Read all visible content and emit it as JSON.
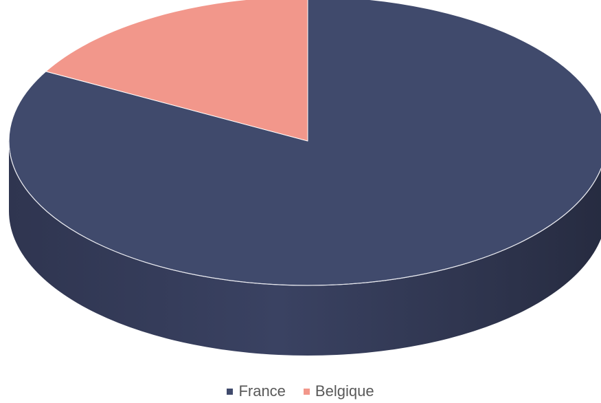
{
  "chart_data": {
    "type": "pie",
    "title": "",
    "series": [
      {
        "name": "France",
        "value": 83,
        "color": "#404a6c"
      },
      {
        "name": "Belgique",
        "value": 17,
        "color": "#f2978b"
      }
    ],
    "legend_position": "bottom",
    "style": "3d"
  }
}
